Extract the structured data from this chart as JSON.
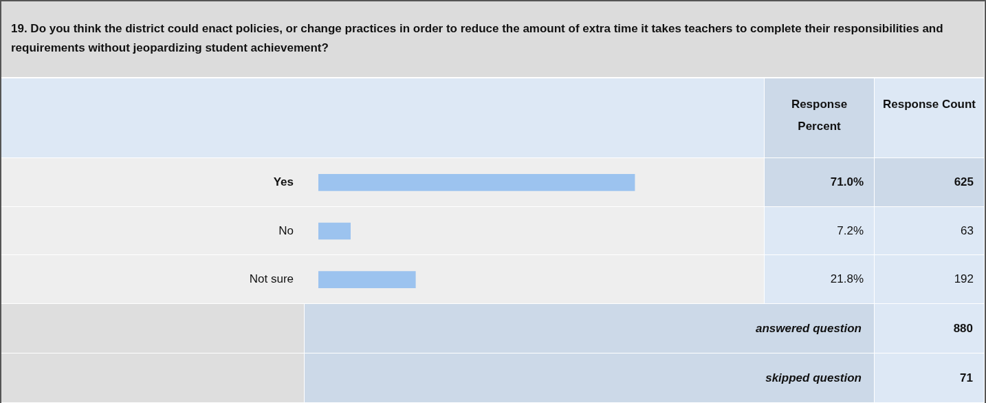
{
  "chart_data": {
    "type": "bar",
    "orientation": "horizontal",
    "title": "19. Do you think the district could enact policies, or change practices in order to reduce the amount of extra time it takes teachers to complete their responsibilities and requirements without jeopardizing student achievement?",
    "categories": [
      "Yes",
      "No",
      "Not sure"
    ],
    "values": [
      71.0,
      7.2,
      21.8
    ],
    "value_labels": [
      "71.0%",
      "7.2%",
      "21.8%"
    ],
    "color": "#9cc3ef",
    "xlim": [
      0,
      100
    ],
    "tick_labels": "y",
    "legend": false,
    "annotations": [
      "Response Percent",
      "Response Count",
      "625",
      "63",
      "192",
      "answered question",
      "880",
      "skipped question",
      "71"
    ]
  }
}
